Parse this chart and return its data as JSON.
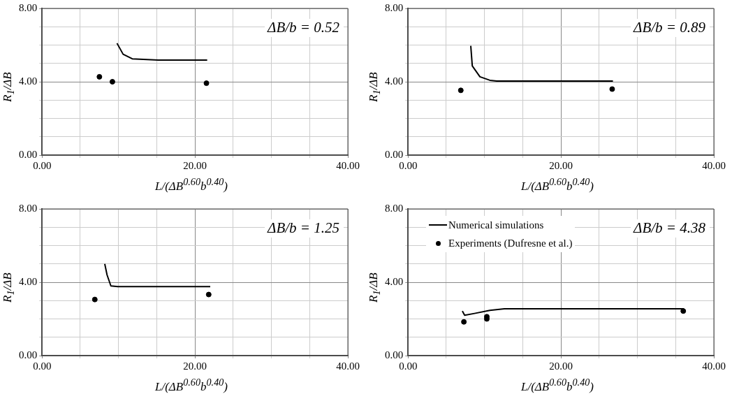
{
  "chart_data": [
    {
      "type": "scatter",
      "xlabel": "L/(ΔB$^{0.60}$b$^{0.40}$)",
      "ylabel": "R$_{1}$/ΔB",
      "annotations": [
        "ΔB/b = 0.52"
      ],
      "xlim": [
        0,
        40
      ],
      "ylim": [
        0,
        8
      ],
      "xticks": [
        {
          "value": 0,
          "label": "0.00"
        },
        {
          "value": 5,
          "label": null
        },
        {
          "value": 10,
          "label": null
        },
        {
          "value": 15,
          "label": null
        },
        {
          "value": 20,
          "label": "20.00"
        },
        {
          "value": 25,
          "label": null
        },
        {
          "value": 30,
          "label": null
        },
        {
          "value": 35,
          "label": null
        },
        {
          "value": 40,
          "label": "40.00"
        }
      ],
      "yticks": [
        {
          "value": 0,
          "label": "0.00"
        },
        {
          "value": 1,
          "label": null
        },
        {
          "value": 2,
          "label": null
        },
        {
          "value": 3,
          "label": null
        },
        {
          "value": 4,
          "label": "4.00"
        },
        {
          "value": 5,
          "label": null
        },
        {
          "value": 6,
          "label": null
        },
        {
          "value": 7,
          "label": null
        },
        {
          "value": 8,
          "label": "8.00"
        }
      ],
      "grid": true,
      "series": [
        {
          "type": "line",
          "color": "#000000",
          "marker": "none",
          "line_style": "solid",
          "x": [
            9.8,
            10.6,
            11.8,
            15.2,
            21.6
          ],
          "values": [
            6.1,
            5.5,
            5.25,
            5.18,
            5.18
          ]
        },
        {
          "type": "scatter",
          "color": "#000000",
          "marker": "circle",
          "x": [
            7.5,
            9.2,
            21.5
          ],
          "values": [
            4.27,
            4.0,
            3.92
          ]
        }
      ]
    },
    {
      "type": "scatter",
      "xlabel": "L/(ΔB$^{0.60}$b$^{0.40}$)",
      "ylabel": "R$_{1}$/ΔB",
      "annotations": [
        "ΔB/b = 0.89"
      ],
      "xlim": [
        0,
        40
      ],
      "ylim": [
        0,
        8
      ],
      "xticks": [
        {
          "value": 0,
          "label": "0.00"
        },
        {
          "value": 5,
          "label": null
        },
        {
          "value": 10,
          "label": null
        },
        {
          "value": 15,
          "label": null
        },
        {
          "value": 20,
          "label": "20.00"
        },
        {
          "value": 25,
          "label": null
        },
        {
          "value": 30,
          "label": null
        },
        {
          "value": 35,
          "label": null
        },
        {
          "value": 40,
          "label": "40.00"
        }
      ],
      "yticks": [
        {
          "value": 0,
          "label": "0.00"
        },
        {
          "value": 1,
          "label": null
        },
        {
          "value": 2,
          "label": null
        },
        {
          "value": 3,
          "label": null
        },
        {
          "value": 4,
          "label": "4.00"
        },
        {
          "value": 5,
          "label": null
        },
        {
          "value": 6,
          "label": null
        },
        {
          "value": 7,
          "label": null
        },
        {
          "value": 8,
          "label": "8.00"
        }
      ],
      "grid": true,
      "series": [
        {
          "type": "line",
          "color": "#000000",
          "marker": "none",
          "line_style": "solid",
          "x": [
            8.2,
            8.4,
            9.4,
            10.7,
            11.6,
            26.8
          ],
          "values": [
            5.96,
            4.86,
            4.27,
            4.08,
            4.04,
            4.04
          ]
        },
        {
          "type": "scatter",
          "color": "#000000",
          "marker": "circle",
          "x": [
            6.9,
            26.7
          ],
          "values": [
            3.53,
            3.6
          ]
        }
      ]
    },
    {
      "type": "scatter",
      "xlabel": "L/(ΔB$^{0.60}$b$^{0.40}$)",
      "ylabel": "R$_{1}$/ΔB",
      "annotations": [
        "ΔB/b = 1.25"
      ],
      "xlim": [
        0,
        40
      ],
      "ylim": [
        0,
        8
      ],
      "xticks": [
        {
          "value": 0,
          "label": "0.00"
        },
        {
          "value": 5,
          "label": null
        },
        {
          "value": 10,
          "label": null
        },
        {
          "value": 15,
          "label": null
        },
        {
          "value": 20,
          "label": "20.00"
        },
        {
          "value": 25,
          "label": null
        },
        {
          "value": 30,
          "label": null
        },
        {
          "value": 35,
          "label": null
        },
        {
          "value": 40,
          "label": "40.00"
        }
      ],
      "yticks": [
        {
          "value": 0,
          "label": "0.00"
        },
        {
          "value": 1,
          "label": null
        },
        {
          "value": 2,
          "label": null
        },
        {
          "value": 3,
          "label": null
        },
        {
          "value": 4,
          "label": "4.00"
        },
        {
          "value": 5,
          "label": null
        },
        {
          "value": 6,
          "label": null
        },
        {
          "value": 7,
          "label": null
        },
        {
          "value": 8,
          "label": "8.00"
        }
      ],
      "grid": true,
      "series": [
        {
          "type": "line",
          "color": "#000000",
          "marker": "none",
          "line_style": "solid",
          "x": [
            8.2,
            8.5,
            9.0,
            9.9,
            22.0
          ],
          "values": [
            5.0,
            4.4,
            3.8,
            3.76,
            3.76
          ]
        },
        {
          "type": "scatter",
          "color": "#000000",
          "marker": "circle",
          "x": [
            6.9,
            21.8
          ],
          "values": [
            3.06,
            3.33
          ]
        }
      ]
    },
    {
      "type": "scatter",
      "xlabel": "L/(ΔB$^{0.60}$b$^{0.40}$)",
      "ylabel": "R$_{1}$/ΔB",
      "annotations": [
        "ΔB/b = 4.38"
      ],
      "xlim": [
        0,
        40
      ],
      "ylim": [
        0,
        8
      ],
      "xticks": [
        {
          "value": 0,
          "label": "0.00"
        },
        {
          "value": 5,
          "label": null
        },
        {
          "value": 10,
          "label": null
        },
        {
          "value": 15,
          "label": null
        },
        {
          "value": 20,
          "label": "20.00"
        },
        {
          "value": 25,
          "label": null
        },
        {
          "value": 30,
          "label": null
        },
        {
          "value": 35,
          "label": null
        },
        {
          "value": 40,
          "label": "40.00"
        }
      ],
      "yticks": [
        {
          "value": 0,
          "label": "0.00"
        },
        {
          "value": 1,
          "label": null
        },
        {
          "value": 2,
          "label": null
        },
        {
          "value": 3,
          "label": null
        },
        {
          "value": 4,
          "label": "4.00"
        },
        {
          "value": 5,
          "label": null
        },
        {
          "value": 6,
          "label": null
        },
        {
          "value": 7,
          "label": null
        },
        {
          "value": 8,
          "label": "8.00"
        }
      ],
      "grid": true,
      "legend": "top left",
      "series": [
        {
          "type": "line",
          "name": "Numerical simulations",
          "color": "#000000",
          "marker": "none",
          "line_style": "solid",
          "x": [
            7.1,
            7.4,
            8.7,
            10.7,
            12.6,
            36.1
          ],
          "values": [
            2.43,
            2.2,
            2.3,
            2.47,
            2.55,
            2.55
          ]
        },
        {
          "type": "scatter",
          "name": "Experiments (Dufresne et al.)",
          "color": "#000000",
          "marker": "circle",
          "x": [
            7.3,
            10.3,
            10.3,
            36.0
          ],
          "values": [
            1.84,
            2.12,
            2.0,
            2.43
          ]
        }
      ]
    }
  ]
}
